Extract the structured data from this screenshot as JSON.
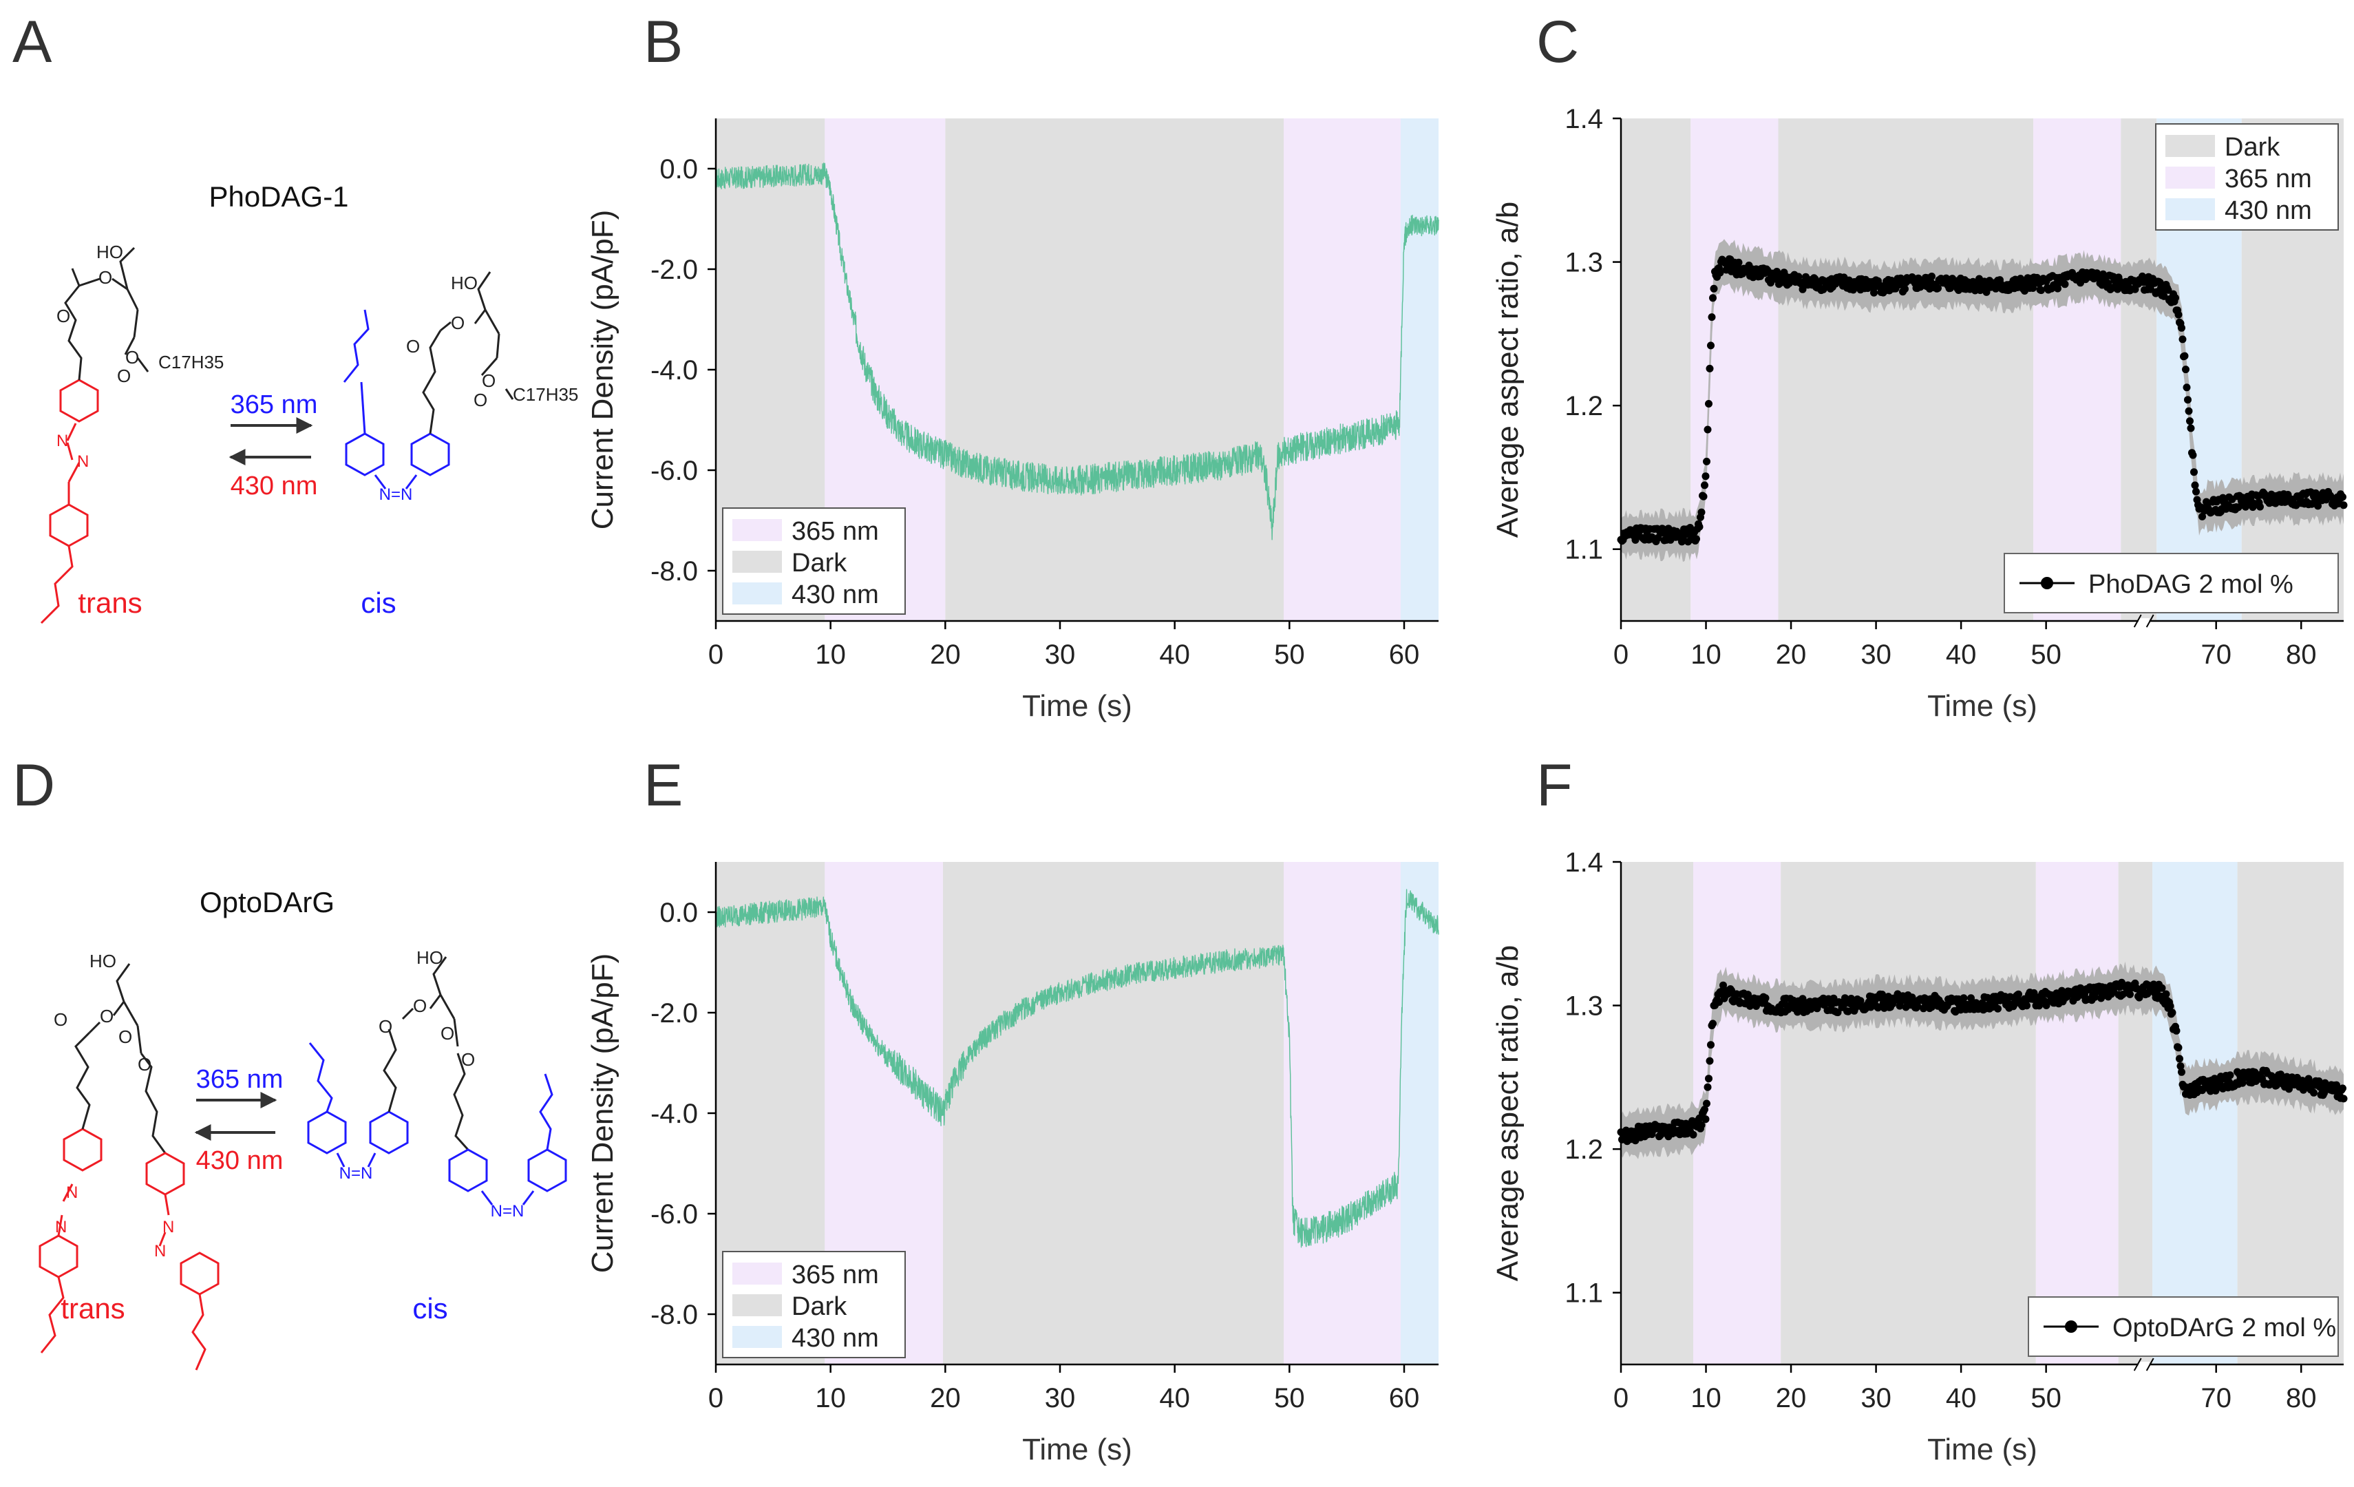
{
  "colors": {
    "dark": "#e0e0e0",
    "uv365": "#f3e8fb",
    "blue430": "#dfeefb",
    "trace": "#5bbf98",
    "trans": "#ef1c24",
    "cis": "#1f1aff",
    "bond": "#222222",
    "black": "#000000",
    "gray_band": "#b3b3b3"
  },
  "panels": {
    "A": {
      "letter": "A",
      "name": "PhoDAG-1",
      "upper": "365 nm",
      "lower": "430 nm",
      "trans": "trans",
      "cis": "cis",
      "atoms": {
        "ho": "HO",
        "o": "O",
        "c17": "C17H35",
        "n": "N",
        "n_bridge": "N=N"
      }
    },
    "D": {
      "letter": "D",
      "name": "OptoDArG",
      "upper": "365 nm",
      "lower": "430 nm",
      "trans": "trans",
      "cis": "cis",
      "atoms": {
        "ho": "HO",
        "o": "O",
        "n": "N",
        "n_bridge": "N=N"
      }
    }
  },
  "chart_data": [
    {
      "id": "B",
      "letter": "B",
      "type": "line",
      "title": "",
      "xlabel": "Time (s)",
      "ylabel": "Current Density (pA/pF)",
      "xlim": [
        0,
        63
      ],
      "ylim": [
        -9,
        1
      ],
      "xticks": [
        0,
        10,
        20,
        30,
        40,
        50,
        60
      ],
      "yticks": [
        0,
        -2,
        -4,
        -6,
        -8
      ],
      "bands": [
        {
          "from": 0,
          "to": 9.5,
          "kind": "dark"
        },
        {
          "from": 9.5,
          "to": 20,
          "kind": "uv365"
        },
        {
          "from": 20,
          "to": 49.5,
          "kind": "dark"
        },
        {
          "from": 49.5,
          "to": 59.7,
          "kind": "uv365"
        },
        {
          "from": 59.7,
          "to": 63,
          "kind": "blue430"
        }
      ],
      "legend": {
        "position": "bottom-left",
        "entries": [
          {
            "label": "365 nm",
            "kind": "uv365"
          },
          {
            "label": "Dark",
            "kind": "dark"
          },
          {
            "label": "430 nm",
            "kind": "blue430"
          }
        ]
      },
      "series": [
        {
          "name": "Current density",
          "style": "noisy-trace",
          "x": [
            0,
            9.5,
            10,
            11,
            12,
            13,
            14,
            15,
            16,
            17,
            18,
            19,
            20,
            22,
            24,
            26,
            28,
            30,
            32,
            34,
            36,
            38,
            40,
            42,
            44,
            46,
            47.5,
            48,
            48.5,
            49,
            50,
            52,
            54,
            56,
            58,
            59.6,
            59.8,
            60,
            60.3,
            61,
            62,
            63
          ],
          "y": [
            -0.2,
            -0.1,
            -0.4,
            -1.8,
            -3.0,
            -3.9,
            -4.5,
            -4.9,
            -5.2,
            -5.4,
            -5.5,
            -5.6,
            -5.7,
            -5.9,
            -6.0,
            -6.1,
            -6.15,
            -6.2,
            -6.2,
            -6.15,
            -6.1,
            -6.05,
            -6.0,
            -5.95,
            -5.9,
            -5.8,
            -5.7,
            -6.2,
            -7.2,
            -5.7,
            -5.6,
            -5.5,
            -5.4,
            -5.3,
            -5.2,
            -5.1,
            -3.0,
            -1.4,
            -1.2,
            -1.1,
            -1.15,
            -1.1
          ]
        }
      ]
    },
    {
      "id": "C",
      "letter": "C",
      "type": "line",
      "title": "",
      "xlabel": "Time (s)",
      "ylabel": "Average aspect ratio, a/b",
      "xlim": [
        0,
        85
      ],
      "ylim": [
        1.05,
        1.4
      ],
      "xticks": [
        0,
        10,
        20,
        30,
        40,
        50,
        70,
        80
      ],
      "yticks": [
        1.1,
        1.2,
        1.3,
        1.4
      ],
      "axis_break_at": 61.5,
      "bands": [
        {
          "from": 0,
          "to": 8.2,
          "kind": "dark"
        },
        {
          "from": 8.2,
          "to": 18.5,
          "kind": "uv365"
        },
        {
          "from": 18.5,
          "to": 48.5,
          "kind": "dark"
        },
        {
          "from": 48.5,
          "to": 58.8,
          "kind": "uv365"
        },
        {
          "from": 58.8,
          "to": 63,
          "kind": "dark"
        },
        {
          "from": 63,
          "to": 73,
          "kind": "blue430"
        },
        {
          "from": 73,
          "to": 85,
          "kind": "dark"
        }
      ],
      "legend": {
        "position": "top-right",
        "entries": [
          {
            "label": "Dark",
            "kind": "dark"
          },
          {
            "label": "365 nm",
            "kind": "uv365"
          },
          {
            "label": "430 nm",
            "kind": "blue430"
          }
        ]
      },
      "series_legend": {
        "label": "PhoDAG 2 mol %",
        "position": "bottom-right"
      },
      "series": [
        {
          "name": "PhoDAG 2 mol %",
          "style": "band-and-markers",
          "band_halfwidth": 0.015,
          "x": [
            0,
            9,
            10,
            10.6,
            11,
            12,
            14,
            18,
            22,
            26,
            30,
            35,
            40,
            45,
            50,
            55,
            58,
            62,
            64,
            65.5,
            66,
            66.8,
            67.3,
            68,
            69,
            70,
            73,
            76,
            80,
            85
          ],
          "y": [
            1.11,
            1.11,
            1.15,
            1.25,
            1.29,
            1.3,
            1.295,
            1.29,
            1.285,
            1.285,
            1.283,
            1.285,
            1.285,
            1.283,
            1.285,
            1.29,
            1.285,
            1.285,
            1.28,
            1.27,
            1.25,
            1.2,
            1.16,
            1.125,
            1.13,
            1.13,
            1.133,
            1.135,
            1.135,
            1.135
          ]
        }
      ]
    },
    {
      "id": "E",
      "letter": "E",
      "type": "line",
      "title": "",
      "xlabel": "Time (s)",
      "ylabel": "Current Density (pA/pF)",
      "xlim": [
        0,
        63
      ],
      "ylim": [
        -9,
        1
      ],
      "xticks": [
        0,
        10,
        20,
        30,
        40,
        50,
        60
      ],
      "yticks": [
        0,
        -2,
        -4,
        -6,
        -8
      ],
      "bands": [
        {
          "from": 0,
          "to": 9.5,
          "kind": "dark"
        },
        {
          "from": 9.5,
          "to": 19.8,
          "kind": "uv365"
        },
        {
          "from": 19.8,
          "to": 49.5,
          "kind": "dark"
        },
        {
          "from": 49.5,
          "to": 59.7,
          "kind": "uv365"
        },
        {
          "from": 59.7,
          "to": 63,
          "kind": "blue430"
        }
      ],
      "legend": {
        "position": "bottom-left",
        "entries": [
          {
            "label": "365 nm",
            "kind": "uv365"
          },
          {
            "label": "Dark",
            "kind": "dark"
          },
          {
            "label": "430 nm",
            "kind": "blue430"
          }
        ]
      },
      "series": [
        {
          "name": "Current density",
          "style": "noisy-trace",
          "x": [
            0,
            9.5,
            10,
            11,
            12,
            13,
            14,
            15,
            16,
            17,
            18,
            19,
            19.8,
            21,
            23,
            25,
            27,
            30,
            33,
            36,
            39,
            42,
            45,
            48,
            49.5,
            50,
            50.3,
            51,
            53,
            55,
            57,
            59.5,
            59.8,
            60.2,
            61,
            62,
            63
          ],
          "y": [
            -0.1,
            0.1,
            -0.5,
            -1.3,
            -1.9,
            -2.3,
            -2.6,
            -2.9,
            -3.1,
            -3.3,
            -3.6,
            -3.8,
            -4.0,
            -3.2,
            -2.6,
            -2.2,
            -1.9,
            -1.6,
            -1.4,
            -1.25,
            -1.15,
            -1.05,
            -0.95,
            -0.9,
            -0.85,
            -2.5,
            -6.1,
            -6.4,
            -6.3,
            -6.1,
            -5.8,
            -5.4,
            -2.0,
            0.3,
            0.1,
            -0.1,
            -0.3
          ]
        }
      ]
    },
    {
      "id": "F",
      "letter": "F",
      "type": "line",
      "title": "",
      "xlabel": "Time (s)",
      "ylabel": "Average aspect ratio, a/b",
      "xlim": [
        0,
        85
      ],
      "ylim": [
        1.05,
        1.4
      ],
      "xticks": [
        0,
        10,
        20,
        30,
        40,
        50,
        70,
        80
      ],
      "yticks": [
        1.1,
        1.2,
        1.3,
        1.4
      ],
      "axis_break_at": 61.5,
      "bands": [
        {
          "from": 0,
          "to": 8.5,
          "kind": "dark"
        },
        {
          "from": 8.5,
          "to": 18.8,
          "kind": "uv365"
        },
        {
          "from": 18.8,
          "to": 48.8,
          "kind": "dark"
        },
        {
          "from": 48.8,
          "to": 58.5,
          "kind": "uv365"
        },
        {
          "from": 58.5,
          "to": 62.5,
          "kind": "dark"
        },
        {
          "from": 62.5,
          "to": 72.5,
          "kind": "blue430"
        },
        {
          "from": 72.5,
          "to": 85,
          "kind": "dark"
        }
      ],
      "legend": null,
      "series_legend": {
        "label": "OptoDArG 2 mol %",
        "position": "bottom-right"
      },
      "series": [
        {
          "name": "OptoDArG 2 mol %",
          "style": "band-and-markers",
          "band_halfwidth": 0.015,
          "x": [
            0,
            9,
            10,
            10.5,
            11,
            12,
            14,
            18,
            22,
            26,
            30,
            35,
            40,
            45,
            50,
            55,
            58,
            59,
            61,
            63.5,
            64.5,
            65.3,
            65.8,
            66.5,
            68,
            70,
            73,
            76,
            80,
            85
          ],
          "y": [
            1.21,
            1.215,
            1.225,
            1.27,
            1.3,
            1.31,
            1.305,
            1.3,
            1.3,
            1.3,
            1.303,
            1.303,
            1.3,
            1.303,
            1.305,
            1.308,
            1.31,
            1.312,
            1.31,
            1.31,
            1.3,
            1.28,
            1.255,
            1.24,
            1.245,
            1.245,
            1.25,
            1.25,
            1.245,
            1.24
          ]
        }
      ]
    }
  ]
}
